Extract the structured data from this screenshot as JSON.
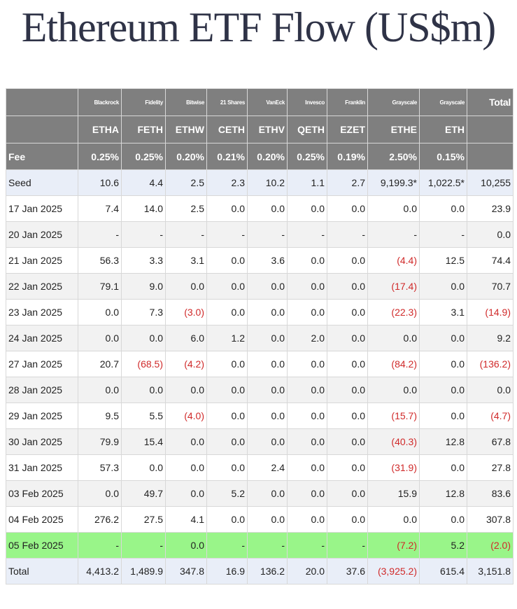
{
  "title": "Ethereum ETF Flow (US$m)",
  "colors": {
    "header_bg": "#7f7f7f",
    "negative": "#d02a2a",
    "highlight_row": "#99f589",
    "seed_total_bg": "#e9eef8",
    "alt_row": "#f2f2f2"
  },
  "header": {
    "issuers": [
      "Blackrock",
      "Fidelity",
      "Bitwise",
      "21 Shares",
      "VanEck",
      "Invesco",
      "Franklin",
      "Grayscale",
      "Grayscale"
    ],
    "total_label": "Total",
    "tickers": [
      "ETHA",
      "FETH",
      "ETHW",
      "CETH",
      "ETHV",
      "QETH",
      "EZET",
      "ETHE",
      "ETH"
    ],
    "fee_label": "Fee",
    "fees": [
      "0.25%",
      "0.25%",
      "0.20%",
      "0.21%",
      "0.20%",
      "0.25%",
      "0.19%",
      "2.50%",
      "0.15%"
    ]
  },
  "rows": [
    {
      "label": "Seed",
      "style": "seed",
      "cells": [
        "10.6",
        "4.4",
        "2.5",
        "2.3",
        "10.2",
        "1.1",
        "2.7",
        "9,199.3*",
        "1,022.5*",
        "10,255"
      ]
    },
    {
      "label": "17 Jan 2025",
      "style": "white",
      "cells": [
        "7.4",
        "14.0",
        "2.5",
        "0.0",
        "0.0",
        "0.0",
        "0.0",
        "0.0",
        "0.0",
        "23.9"
      ]
    },
    {
      "label": "20 Jan 2025",
      "style": "alt",
      "cells": [
        "-",
        "-",
        "-",
        "-",
        "-",
        "-",
        "-",
        "-",
        "-",
        "0.0"
      ]
    },
    {
      "label": "21 Jan 2025",
      "style": "white",
      "cells": [
        "56.3",
        "3.3",
        "3.1",
        "0.0",
        "3.6",
        "0.0",
        "0.0",
        "(4.4)",
        "12.5",
        "74.4"
      ]
    },
    {
      "label": "22 Jan 2025",
      "style": "alt",
      "cells": [
        "79.1",
        "9.0",
        "0.0",
        "0.0",
        "0.0",
        "0.0",
        "0.0",
        "(17.4)",
        "0.0",
        "70.7"
      ]
    },
    {
      "label": "23 Jan 2025",
      "style": "white",
      "cells": [
        "0.0",
        "7.3",
        "(3.0)",
        "0.0",
        "0.0",
        "0.0",
        "0.0",
        "(22.3)",
        "3.1",
        "(14.9)"
      ]
    },
    {
      "label": "24 Jan 2025",
      "style": "alt",
      "cells": [
        "0.0",
        "0.0",
        "6.0",
        "1.2",
        "0.0",
        "2.0",
        "0.0",
        "0.0",
        "0.0",
        "9.2"
      ]
    },
    {
      "label": "27 Jan 2025",
      "style": "white",
      "cells": [
        "20.7",
        "(68.5)",
        "(4.2)",
        "0.0",
        "0.0",
        "0.0",
        "0.0",
        "(84.2)",
        "0.0",
        "(136.2)"
      ]
    },
    {
      "label": "28 Jan 2025",
      "style": "alt",
      "cells": [
        "0.0",
        "0.0",
        "0.0",
        "0.0",
        "0.0",
        "0.0",
        "0.0",
        "0.0",
        "0.0",
        "0.0"
      ]
    },
    {
      "label": "29 Jan 2025",
      "style": "white",
      "cells": [
        "9.5",
        "5.5",
        "(4.0)",
        "0.0",
        "0.0",
        "0.0",
        "0.0",
        "(15.7)",
        "0.0",
        "(4.7)"
      ]
    },
    {
      "label": "30 Jan 2025",
      "style": "alt",
      "cells": [
        "79.9",
        "15.4",
        "0.0",
        "0.0",
        "0.0",
        "0.0",
        "0.0",
        "(40.3)",
        "12.8",
        "67.8"
      ]
    },
    {
      "label": "31 Jan 2025",
      "style": "white",
      "cells": [
        "57.3",
        "0.0",
        "0.0",
        "0.0",
        "2.4",
        "0.0",
        "0.0",
        "(31.9)",
        "0.0",
        "27.8"
      ]
    },
    {
      "label": "03 Feb 2025",
      "style": "alt",
      "cells": [
        "0.0",
        "49.7",
        "0.0",
        "5.2",
        "0.0",
        "0.0",
        "0.0",
        "15.9",
        "12.8",
        "83.6"
      ]
    },
    {
      "label": "04 Feb 2025",
      "style": "white",
      "cells": [
        "276.2",
        "27.5",
        "4.1",
        "0.0",
        "0.0",
        "0.0",
        "0.0",
        "0.0",
        "0.0",
        "307.8"
      ]
    },
    {
      "label": "05 Feb 2025",
      "style": "highlight",
      "cells": [
        "-",
        "-",
        "0.0",
        "-",
        "-",
        "-",
        "-",
        "(7.2)",
        "5.2",
        "(2.0)"
      ]
    },
    {
      "label": "Total",
      "style": "total",
      "cells": [
        "4,413.2",
        "1,489.9",
        "347.8",
        "16.9",
        "136.2",
        "20.0",
        "37.6",
        "(3,925.2)",
        "615.4",
        "3,151.8"
      ]
    }
  ]
}
